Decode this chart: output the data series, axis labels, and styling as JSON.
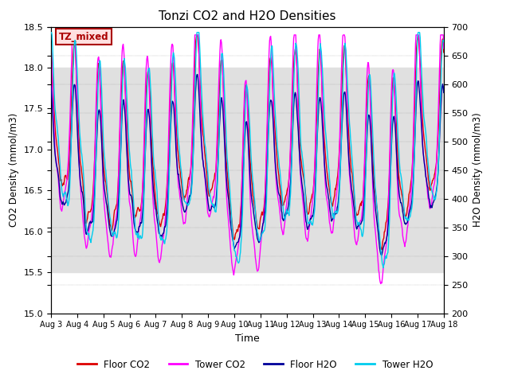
{
  "title": "Tonzi CO2 and H2O Densities",
  "xlabel": "Time",
  "ylabel_left": "CO2 Density (mmol/m3)",
  "ylabel_right": "H2O Density (mmol/m3)",
  "ylim_left": [
    15.0,
    18.5
  ],
  "ylim_right": [
    200,
    700
  ],
  "annotation_text": "TZ_mixed",
  "annotation_color": "#aa0000",
  "annotation_bg": "#ffe0e0",
  "annotation_border": "#aa0000",
  "x_tick_labels": [
    "Aug 3",
    "Aug 4",
    "Aug 5",
    "Aug 6",
    "Aug 7",
    "Aug 8",
    "Aug 9",
    "Aug 10",
    "Aug 11",
    "Aug 12",
    "Aug 13",
    "Aug 14",
    "Aug 15",
    "Aug 16",
    "Aug 17",
    "Aug 18"
  ],
  "n_days": 16,
  "background_shade": [
    15.5,
    18.0
  ],
  "colors": {
    "floor_co2": "#dd0000",
    "tower_co2": "#ff00ff",
    "floor_h2o": "#000099",
    "tower_h2o": "#00ccee"
  },
  "legend_labels": [
    "Floor CO2",
    "Tower CO2",
    "Floor H2O",
    "Tower H2O"
  ]
}
